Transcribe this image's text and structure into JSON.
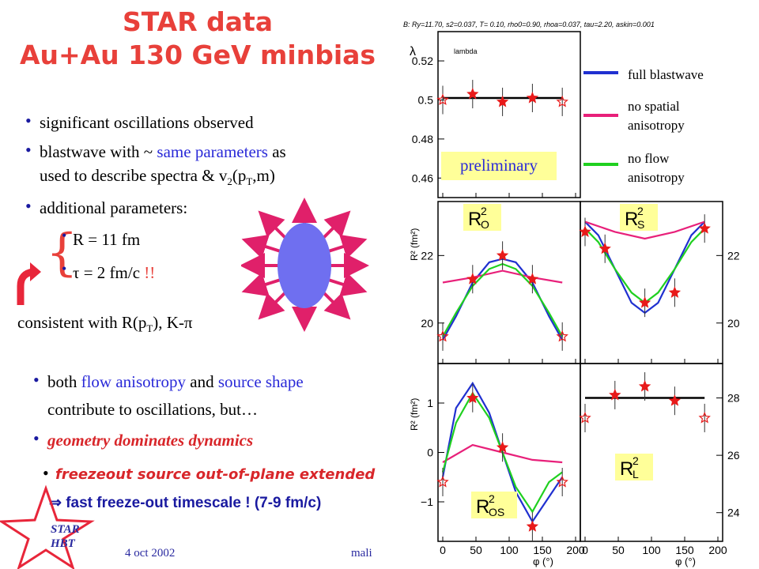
{
  "slide": {
    "title_line1": "STAR data",
    "title_line2": "Au+Au 130 GeV minbias",
    "bullets": {
      "b1": "significant oscillations observed",
      "b2_a": "blastwave with ~ ",
      "b2_blue": "same parameters",
      "b2_b": " as",
      "b2_c": "used to describe spectra & v",
      "b2_c_sub": "2",
      "b2_c_mid": "(p",
      "b2_c_sub2": "T",
      "b2_c_end": ",m)",
      "b3": "additional parameters:",
      "p_R": "R = 11 fm",
      "p_tau": "τ = 2 fm/c",
      "p_tau_mark": " !!",
      "consistent_a": "consistent with R(p",
      "consistent_sub": "T",
      "consistent_b": "), K-π",
      "b4_a": "both ",
      "b4_blue1": "flow anisotropy",
      "b4_mid": " and ",
      "b4_blue2": "source shape",
      "b4_c": "contribute to oscillations, but…",
      "b5": "geometry dominates dynamics",
      "b6": "freezeout source out-of-plane extended",
      "b7": "⇒  fast freeze-out timescale !  (7-9 fm/c)"
    },
    "footer": {
      "date": "4 oct 2002",
      "author": "mali",
      "logo_line1": "STAR",
      "logo_line2": "HBT"
    },
    "colors": {
      "title": "#e8403a",
      "accent_blue": "#2a2ad8",
      "ellipse": "#6f6ff0",
      "arrows": "#e0206a"
    }
  },
  "figure": {
    "header": "B: Ry=11.70, s2=0.037, T= 0.10, rho0=0.90, rhoa=0.037, tau=2.20, askin=0.001",
    "legend": {
      "full": "full blastwave",
      "spatial_1": "no spatial",
      "spatial_2": "anisotropy",
      "flow_1": "no flow",
      "flow_2": "anisotropy",
      "colors": {
        "full": "#2030d0",
        "spatial": "#e8207a",
        "flow": "#20d020"
      }
    },
    "preliminary": "preliminary",
    "lambda_label": "lambda",
    "lambda_axis": "λ",
    "r2_axis": "R² (fm²)",
    "phi_axis": "φ (°)",
    "panel_labels": {
      "Ro": "R",
      "Ro_sub": "O",
      "Ro_sup": "2",
      "Rs": "R",
      "Rs_sub": "S",
      "Rs_sup": "2",
      "Ros": "R",
      "Ros_sub": "OS",
      "Ros_sup": "2",
      "Rl": "R",
      "Rl_sub": "L",
      "Rl_sup": "2"
    },
    "ticks": {
      "lambda": [
        "0.52",
        "0.5",
        "0.48",
        "0.46"
      ],
      "ro": [
        "22",
        "20"
      ],
      "ros": [
        "1",
        "0",
        "−1"
      ],
      "rs": [
        "22",
        "20"
      ],
      "rl": [
        "28",
        "26",
        "24"
      ],
      "phi": [
        "0",
        "50",
        "100",
        "150",
        "200"
      ]
    }
  },
  "chart_data": {
    "type": "scatter",
    "x_label": "φ (°)",
    "panels": [
      {
        "name": "lambda",
        "ylim": [
          0.45,
          0.535
        ],
        "points": [
          [
            0,
            0.5
          ],
          [
            45,
            0.503
          ],
          [
            90,
            0.499
          ],
          [
            135,
            0.501
          ],
          [
            180,
            0.499
          ]
        ],
        "series": [
          {
            "name": "full blastwave",
            "values": [
              [
                0,
                0.501
              ],
              [
                180,
                0.501
              ]
            ]
          }
        ]
      },
      {
        "name": "R_O^2",
        "ylim": [
          18.8,
          23.6
        ],
        "points": [
          [
            0,
            19.6
          ],
          [
            45,
            21.3
          ],
          [
            90,
            22.0
          ],
          [
            135,
            21.3
          ],
          [
            180,
            19.6
          ]
        ],
        "series": [
          {
            "name": "full blastwave",
            "values": [
              [
                0,
                19.5
              ],
              [
                20,
                20.2
              ],
              [
                45,
                21.2
              ],
              [
                70,
                21.8
              ],
              [
                90,
                21.9
              ],
              [
                110,
                21.8
              ],
              [
                135,
                21.2
              ],
              [
                160,
                20.2
              ],
              [
                180,
                19.5
              ]
            ]
          },
          {
            "name": "no spatial anisotropy",
            "values": [
              [
                0,
                21.2
              ],
              [
                45,
                21.35
              ],
              [
                90,
                21.55
              ],
              [
                135,
                21.35
              ],
              [
                180,
                21.2
              ]
            ]
          },
          {
            "name": "no flow anisotropy",
            "values": [
              [
                0,
                19.6
              ],
              [
                20,
                20.3
              ],
              [
                45,
                21.1
              ],
              [
                70,
                21.6
              ],
              [
                90,
                21.75
              ],
              [
                110,
                21.6
              ],
              [
                135,
                21.1
              ],
              [
                160,
                20.3
              ],
              [
                180,
                19.6
              ]
            ]
          }
        ]
      },
      {
        "name": "R_S^2",
        "ylim": [
          18.8,
          23.6
        ],
        "points": [
          [
            0,
            22.7
          ],
          [
            30,
            22.2
          ],
          [
            90,
            20.6
          ],
          [
            135,
            20.9
          ],
          [
            180,
            22.8
          ]
        ],
        "series": [
          {
            "name": "full blastwave",
            "values": [
              [
                0,
                23.0
              ],
              [
                20,
                22.6
              ],
              [
                45,
                21.6
              ],
              [
                70,
                20.6
              ],
              [
                90,
                20.3
              ],
              [
                110,
                20.6
              ],
              [
                135,
                21.6
              ],
              [
                160,
                22.6
              ],
              [
                180,
                23.0
              ]
            ]
          },
          {
            "name": "no spatial anisotropy",
            "values": [
              [
                0,
                23.0
              ],
              [
                45,
                22.7
              ],
              [
                90,
                22.5
              ],
              [
                135,
                22.7
              ],
              [
                180,
                23.0
              ]
            ]
          },
          {
            "name": "no flow anisotropy",
            "values": [
              [
                0,
                22.8
              ],
              [
                20,
                22.4
              ],
              [
                45,
                21.6
              ],
              [
                70,
                20.9
              ],
              [
                90,
                20.6
              ],
              [
                110,
                20.9
              ],
              [
                135,
                21.6
              ],
              [
                160,
                22.4
              ],
              [
                180,
                22.8
              ]
            ]
          }
        ]
      },
      {
        "name": "R_OS^2",
        "ylim": [
          -1.8,
          1.8
        ],
        "points": [
          [
            0,
            -0.6
          ],
          [
            45,
            1.1
          ],
          [
            90,
            0.1
          ],
          [
            135,
            -1.5
          ],
          [
            180,
            -0.6
          ]
        ],
        "series": [
          {
            "name": "full blastwave",
            "values": [
              [
                0,
                -0.5
              ],
              [
                20,
                0.9
              ],
              [
                45,
                1.4
              ],
              [
                70,
                0.8
              ],
              [
                90,
                0.0
              ],
              [
                110,
                -0.8
              ],
              [
                135,
                -1.4
              ],
              [
                160,
                -0.9
              ],
              [
                180,
                -0.5
              ]
            ]
          },
          {
            "name": "no spatial anisotropy",
            "values": [
              [
                0,
                -0.2
              ],
              [
                45,
                0.15
              ],
              [
                90,
                0.0
              ],
              [
                135,
                -0.15
              ],
              [
                180,
                -0.2
              ]
            ]
          },
          {
            "name": "no flow anisotropy",
            "values": [
              [
                0,
                -0.4
              ],
              [
                20,
                0.6
              ],
              [
                45,
                1.2
              ],
              [
                70,
                0.7
              ],
              [
                90,
                0.0
              ],
              [
                110,
                -0.7
              ],
              [
                135,
                -1.2
              ],
              [
                160,
                -0.6
              ],
              [
                180,
                -0.4
              ]
            ]
          }
        ]
      },
      {
        "name": "R_L^2",
        "ylim": [
          23.0,
          29.2
        ],
        "points": [
          [
            0,
            27.3
          ],
          [
            45,
            28.1
          ],
          [
            90,
            28.4
          ],
          [
            135,
            27.9
          ],
          [
            180,
            27.3
          ]
        ],
        "series": [
          {
            "name": "full blastwave",
            "values": [
              [
                0,
                28.0
              ],
              [
                180,
                28.0
              ]
            ]
          }
        ]
      }
    ]
  }
}
